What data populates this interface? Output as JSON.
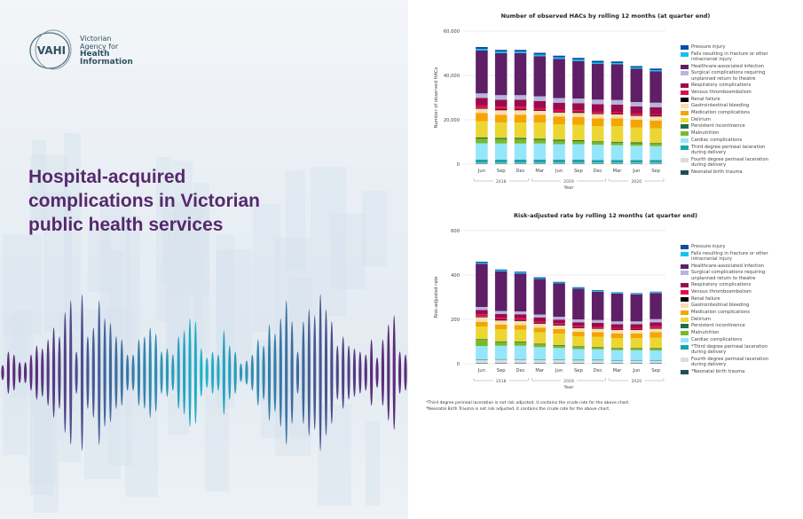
{
  "brand": {
    "logo_mark": "VAHI",
    "name_lines": [
      "Victorian",
      "Agency for"
    ],
    "name_bold": [
      "Health",
      "Information"
    ]
  },
  "hero": {
    "title": "Hospital-acquired complications in Victorian public health services"
  },
  "colors": {
    "purple": "#55296b",
    "teal": "#22b3c4"
  },
  "series": [
    {
      "key": "pressure",
      "label": "Pressure injury",
      "color": "#0b4ea2"
    },
    {
      "key": "falls",
      "label": "Falls resulting in fracture or other intracranial injury",
      "color": "#15c3f2"
    },
    {
      "key": "hai",
      "label": "Healthcare-associated infection",
      "color": "#5e1f66"
    },
    {
      "key": "surgical",
      "label": "Surgical complications requiring unplanned return to theatre",
      "color": "#b7b5dc"
    },
    {
      "key": "resp",
      "label": "Respiratory complications",
      "color": "#9a0b4c"
    },
    {
      "key": "vte",
      "label": "Venous thromboembolism",
      "color": "#e30a4f"
    },
    {
      "key": "renal",
      "label": "Renal failure",
      "color": "#000000"
    },
    {
      "key": "gi",
      "label": "Gastrointestinal bleeding",
      "color": "#fddcb0"
    },
    {
      "key": "medication",
      "label": "Medication complications",
      "color": "#f3a600"
    },
    {
      "key": "delirium",
      "label": "Delirium",
      "color": "#ecd634"
    },
    {
      "key": "incontinence",
      "label": "Persistent incontinence",
      "color": "#1d6b4b"
    },
    {
      "key": "malnutrition",
      "label": "Malnutrition",
      "color": "#78ba29"
    },
    {
      "key": "cardiac",
      "label": "Cardiac complications",
      "color": "#95e6fb"
    },
    {
      "key": "third",
      "label": "Third degree perineal laceration during delivery",
      "color": "#16a4ad"
    },
    {
      "key": "fourth",
      "label": "Fourth degree perineal laceration during delivery",
      "color": "#dcdcdc"
    },
    {
      "key": "neonatal",
      "label": "Neonatal birth trauma",
      "color": "#1f4d5b"
    }
  ],
  "chart_data": [
    {
      "type": "bar",
      "stacked": true,
      "title": "Number of observed HACs by rolling 12 months (at quarter end)",
      "xlabel": "Year",
      "ylabel": "Number of observed HACs",
      "ylim": [
        0,
        60000
      ],
      "yticks": [
        "0",
        "20,000",
        "40,000",
        "60,000"
      ],
      "legend": "right",
      "grid": true,
      "categories": [
        "Jun",
        "Sep",
        "Dec",
        "Mar",
        "Jun",
        "Sep",
        "Dec",
        "Mar",
        "Jun",
        "Sep"
      ],
      "year_groups": [
        {
          "label": "2018",
          "span": 3
        },
        {
          "label": "2019",
          "span": 4
        },
        {
          "label": "2020",
          "span": 3
        }
      ],
      "legend_labels": [
        "Pressure injury",
        "Falls resulting in fracture or other intracranial injury",
        "Healthcare-associated infection",
        "Surgical complications requiring unplanned return to theatre",
        "Respiratory complications",
        "Venous thromboembolism",
        "Renal failure",
        "Gastrointestinal bleeding",
        "Medication complications",
        "Delirium",
        "Persistent incontinence",
        "Malnutrition",
        "Cardiac complications",
        "Third degree perineal laceration during delivery",
        "Fourth degree perineal laceration during delivery",
        "Neonatal birth trauma"
      ],
      "series": {
        "pressure": [
          900,
          800,
          800,
          800,
          800,
          800,
          800,
          700,
          600,
          700
        ],
        "falls": [
          700,
          700,
          700,
          700,
          700,
          700,
          600,
          600,
          600,
          600
        ],
        "hai": [
          19300,
          18900,
          18900,
          18100,
          17600,
          16800,
          16100,
          16100,
          15000,
          14100
        ],
        "surgical": [
          2100,
          2100,
          2100,
          2100,
          2100,
          2100,
          2100,
          2100,
          2000,
          2100
        ],
        "resp": [
          3200,
          3100,
          3100,
          3100,
          3100,
          3200,
          3200,
          3200,
          3000,
          3000
        ],
        "vte": [
          1300,
          1300,
          1300,
          1100,
          1000,
          900,
          900,
          900,
          900,
          800
        ],
        "renal": [
          300,
          300,
          300,
          300,
          300,
          300,
          300,
          300,
          300,
          300
        ],
        "gi": [
          2000,
          2000,
          2000,
          1800,
          1800,
          1800,
          2000,
          1800,
          1800,
          1800
        ],
        "medication": [
          3700,
          3500,
          3500,
          3500,
          3500,
          3500,
          3500,
          3500,
          3500,
          3500
        ],
        "delirium": [
          7300,
          7000,
          7000,
          7200,
          7000,
          7000,
          6800,
          7000,
          6700,
          6700
        ],
        "incontinence": [
          500,
          500,
          500,
          500,
          500,
          500,
          400,
          400,
          400,
          400
        ],
        "malnutrition": [
          2100,
          2000,
          2000,
          1700,
          1500,
          1300,
          1200,
          1200,
          1100,
          1000
        ],
        "cardiac": [
          7400,
          7300,
          7300,
          7300,
          7000,
          7000,
          6800,
          6600,
          6400,
          6200
        ],
        "third": [
          1400,
          1400,
          1400,
          1400,
          1400,
          1400,
          1300,
          1300,
          1300,
          1300
        ],
        "fourth": [
          400,
          400,
          400,
          400,
          400,
          400,
          400,
          400,
          400,
          400
        ],
        "neonatal": [
          200,
          200,
          200,
          200,
          200,
          200,
          200,
          200,
          200,
          200
        ]
      }
    },
    {
      "type": "bar",
      "stacked": true,
      "title": "Risk-adjusted rate by rolling 12 months (at quarter end)",
      "xlabel": "Year",
      "ylabel": "Risk-adjusted rate",
      "ylim": [
        0,
        600
      ],
      "yticks": [
        "0",
        "200",
        "400",
        "600"
      ],
      "legend": "right",
      "grid": true,
      "categories": [
        "Jun",
        "Sep",
        "Dec",
        "Mar",
        "Jun",
        "Sep",
        "Dec",
        "Mar",
        "Jun",
        "Sep"
      ],
      "year_groups": [
        {
          "label": "2018",
          "span": 3
        },
        {
          "label": "2019",
          "span": 4
        },
        {
          "label": "2020",
          "span": 3
        }
      ],
      "legend_labels": [
        "Pressure injury",
        "Falls resulting in fracture or other intracranial injury",
        "Healthcare-associated infection",
        "Surgical complications requiring unplanned return to theatre",
        "Respiratory complications",
        "Venous thromboembolism",
        "Renal failure",
        "Gastrointestinal bleeding",
        "Medication complications",
        "Delirium",
        "Persistent incontinence",
        "Malnutrition",
        "Cardiac complications",
        "*Third degree perineal laceration during delivery",
        "Fourth degree perineal laceration during delivery",
        "*Neonatal birth trauma"
      ],
      "series": {
        "pressure": [
          5,
          4,
          4,
          4,
          3,
          3,
          3,
          2,
          2,
          2
        ],
        "falls": [
          5,
          5,
          5,
          4,
          4,
          4,
          4,
          4,
          4,
          4
        ],
        "hai": [
          194,
          178,
          170,
          160,
          150,
          138,
          128,
          125,
          122,
          118
        ],
        "surgical": [
          14,
          13,
          13,
          13,
          13,
          13,
          13,
          13,
          13,
          14
        ],
        "resp": [
          19,
          18,
          18,
          17,
          16,
          16,
          16,
          16,
          16,
          18
        ],
        "vte": [
          10,
          9,
          9,
          8,
          7,
          7,
          7,
          7,
          7,
          8
        ],
        "renal": [
          3,
          3,
          3,
          3,
          3,
          3,
          3,
          3,
          3,
          3
        ],
        "gi": [
          21,
          19,
          19,
          18,
          17,
          17,
          16,
          15,
          15,
          16
        ],
        "medication": [
          21,
          21,
          21,
          21,
          20,
          20,
          21,
          21,
          22,
          24
        ],
        "delirium": [
          57,
          54,
          53,
          52,
          52,
          46,
          46,
          46,
          45,
          48
        ],
        "incontinence": [
          3,
          3,
          3,
          3,
          3,
          3,
          3,
          3,
          3,
          3
        ],
        "malnutrition": [
          28,
          17,
          16,
          12,
          10,
          9,
          7,
          6,
          6,
          7
        ],
        "cardiac": [
          60,
          60,
          60,
          56,
          52,
          48,
          47,
          46,
          46,
          45
        ],
        "third": [
          3,
          3,
          3,
          3,
          3,
          3,
          3,
          3,
          3,
          3
        ],
        "fourth": [
          15,
          16,
          16,
          14,
          14,
          13,
          13,
          10,
          10,
          10
        ],
        "neonatal": [
          2,
          2,
          2,
          2,
          2,
          2,
          2,
          2,
          2,
          2
        ]
      },
      "footnotes": [
        "*Third degree perineal laceration is not risk adjusted, it contains the crude rate for the above chart.",
        "*Neonatal Birth Trauma is not risk adjusted, it contains the crude rate for the above chart."
      ]
    }
  ]
}
